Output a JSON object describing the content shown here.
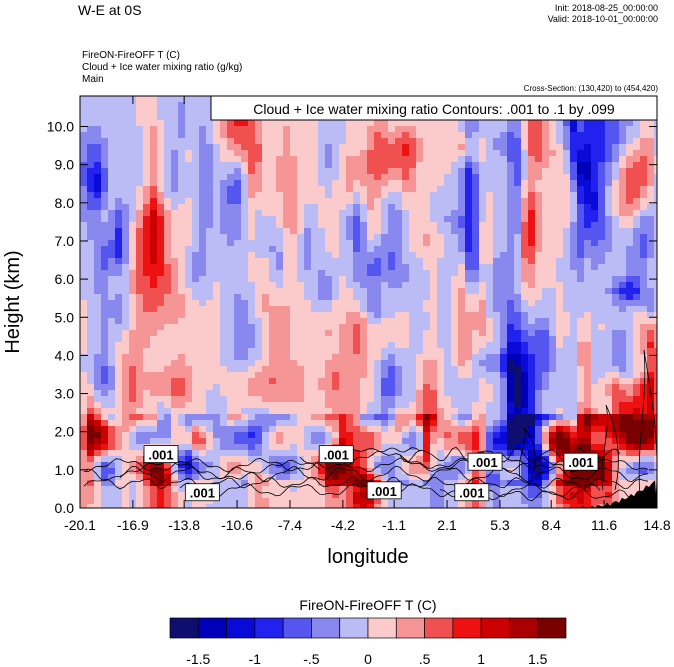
{
  "header": {
    "main_title": "W-E at 0S",
    "init": "Init: 2018-08-25_00:00:00",
    "valid": "Valid: 2018-10-01_00:00:00",
    "line1": "FireON-FireOFF T   (C)",
    "line2": "Cloud + Ice water mixing ratio   (g/kg)",
    "line3": "Main",
    "cross_section": "Cross-Section: (130,420) to (454,420)"
  },
  "chart_data": {
    "type": "heatmap",
    "contour_info": "Cloud + Ice water mixing ratio Contours: .001 to .1 by .099",
    "xlabel": "longitude",
    "ylabel": "Height (km)",
    "x_ticks": [
      "-20.1",
      "-16.9",
      "-13.8",
      "-10.6",
      "-7.4",
      "-4.2",
      "-1.1",
      "2.1",
      "5.3",
      "8.4",
      "11.6",
      "14.8"
    ],
    "y_ticks": [
      "0.0",
      "1.0",
      "2.0",
      "3.0",
      "4.0",
      "5.0",
      "6.0",
      "7.0",
      "8.0",
      "9.0",
      "10.0"
    ],
    "xlim": [
      -20.1,
      14.8
    ],
    "ylim": [
      0,
      10.8
    ],
    "contour_labels": [
      {
        "text": ".001",
        "x": -15.2,
        "y": 1.4
      },
      {
        "text": ".001",
        "x": -12.7,
        "y": 0.4
      },
      {
        "text": ".001",
        "x": -4.6,
        "y": 1.4
      },
      {
        "text": ".001",
        "x": -1.7,
        "y": 0.45
      },
      {
        "text": ".001",
        "x": 4.4,
        "y": 1.2
      },
      {
        "text": ".001",
        "x": 3.6,
        "y": 0.4
      },
      {
        "text": ".001",
        "x": 10.2,
        "y": 1.2
      }
    ],
    "colorbar": {
      "title": "FireON-FireOFF T  (C)",
      "tick_labels": [
        "-1.5",
        "-1",
        "-.5",
        "0",
        ".5",
        "1",
        "1.5"
      ],
      "colors": [
        "#0e0e6e",
        "#0000b8",
        "#0a0ad8",
        "#2222ee",
        "#5555f0",
        "#8888ee",
        "#bbbbf5",
        "#fbcaca",
        "#f59595",
        "#f05050",
        "#ee1111",
        "#cc0000",
        "#a80000",
        "#7a0000"
      ]
    }
  }
}
